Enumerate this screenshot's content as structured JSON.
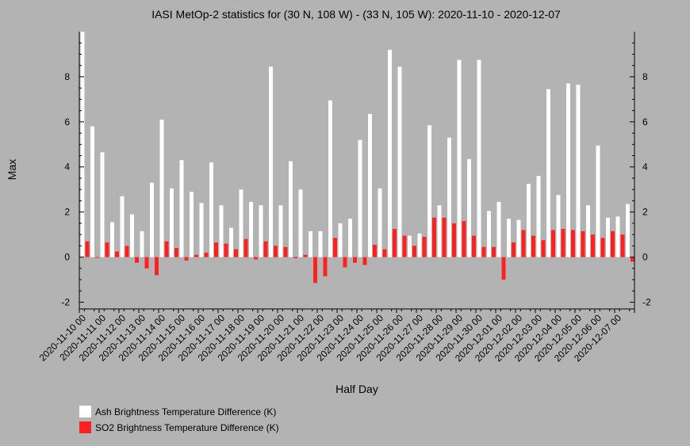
{
  "chart_data": {
    "type": "bar",
    "title": "IASI MetOp-2 statistics for (30 N, 108 W) - (33 N, 105 W): 2020-11-10 - 2020-12-07",
    "xlabel": "Half Day",
    "ylabel": "Max",
    "ylim": [
      -2.3,
      10
    ],
    "yticks": [
      -2,
      0,
      2,
      4,
      6,
      8
    ],
    "ytick_labels": [
      "-2",
      "0",
      "2",
      "4",
      "6",
      "8"
    ],
    "xtick_labels": [
      "2020-11-10 00",
      "2020-11-11 00",
      "2020-11-12 00",
      "2020-11-13 00",
      "2020-11-14 00",
      "2020-11-15 00",
      "2020-11-16 00",
      "2020-11-17 00",
      "2020-11-18 00",
      "2020-11-19 00",
      "2020-11-20 00",
      "2020-11-21 00",
      "2020-11-22 00",
      "2020-11-23 00",
      "2020-11-24 00",
      "2020-11-25 00",
      "2020-11-26 00",
      "2020-11-27 00",
      "2020-11-28 00",
      "2020-11-29 00",
      "2020-11-30 00",
      "2020-12-01 00",
      "2020-12-02 00",
      "2020-12-03 00",
      "2020-12-04 00",
      "2020-12-05 00",
      "2020-12-06 00",
      "2020-12-07 00"
    ],
    "legend_position": "bottom-left",
    "series": [
      {
        "name": "Ash Brightness Temperature Difference (K)",
        "color": "#ffffff",
        "values": [
          10.0,
          5.8,
          4.65,
          1.55,
          2.7,
          1.9,
          1.15,
          3.3,
          6.1,
          3.05,
          4.3,
          2.9,
          2.4,
          4.2,
          2.3,
          1.3,
          3.0,
          2.45,
          2.3,
          8.45,
          2.3,
          4.25,
          3.0,
          1.15,
          1.15,
          6.95,
          1.5,
          1.7,
          5.2,
          6.35,
          3.05,
          9.2,
          8.45,
          0.95,
          1.05,
          5.85,
          2.3,
          5.3,
          8.75,
          4.35,
          8.75,
          2.05,
          2.45,
          1.7,
          1.65,
          3.25,
          3.6,
          7.45,
          2.75,
          7.7,
          7.65,
          2.3,
          4.95,
          1.75,
          1.8,
          2.35
        ]
      },
      {
        "name": "SO2 Brightness Temperature Difference (K)",
        "color": "#ff2020",
        "values": [
          0.7,
          0.0,
          0.65,
          0.25,
          0.5,
          -0.25,
          -0.5,
          -0.8,
          0.7,
          0.4,
          -0.15,
          0.1,
          0.2,
          0.65,
          0.6,
          0.35,
          0.8,
          -0.1,
          0.7,
          0.5,
          0.45,
          -0.05,
          0.1,
          -1.15,
          -0.85,
          0.85,
          -0.45,
          -0.25,
          -0.35,
          0.55,
          0.35,
          1.25,
          0.95,
          0.5,
          0.9,
          1.75,
          1.75,
          1.5,
          1.6,
          0.95,
          0.45,
          0.45,
          -1.0,
          0.65,
          1.2,
          0.95,
          0.75,
          1.2,
          1.25,
          1.2,
          1.15,
          1.0,
          0.85,
          1.15,
          1.0,
          -0.2
        ]
      }
    ]
  }
}
